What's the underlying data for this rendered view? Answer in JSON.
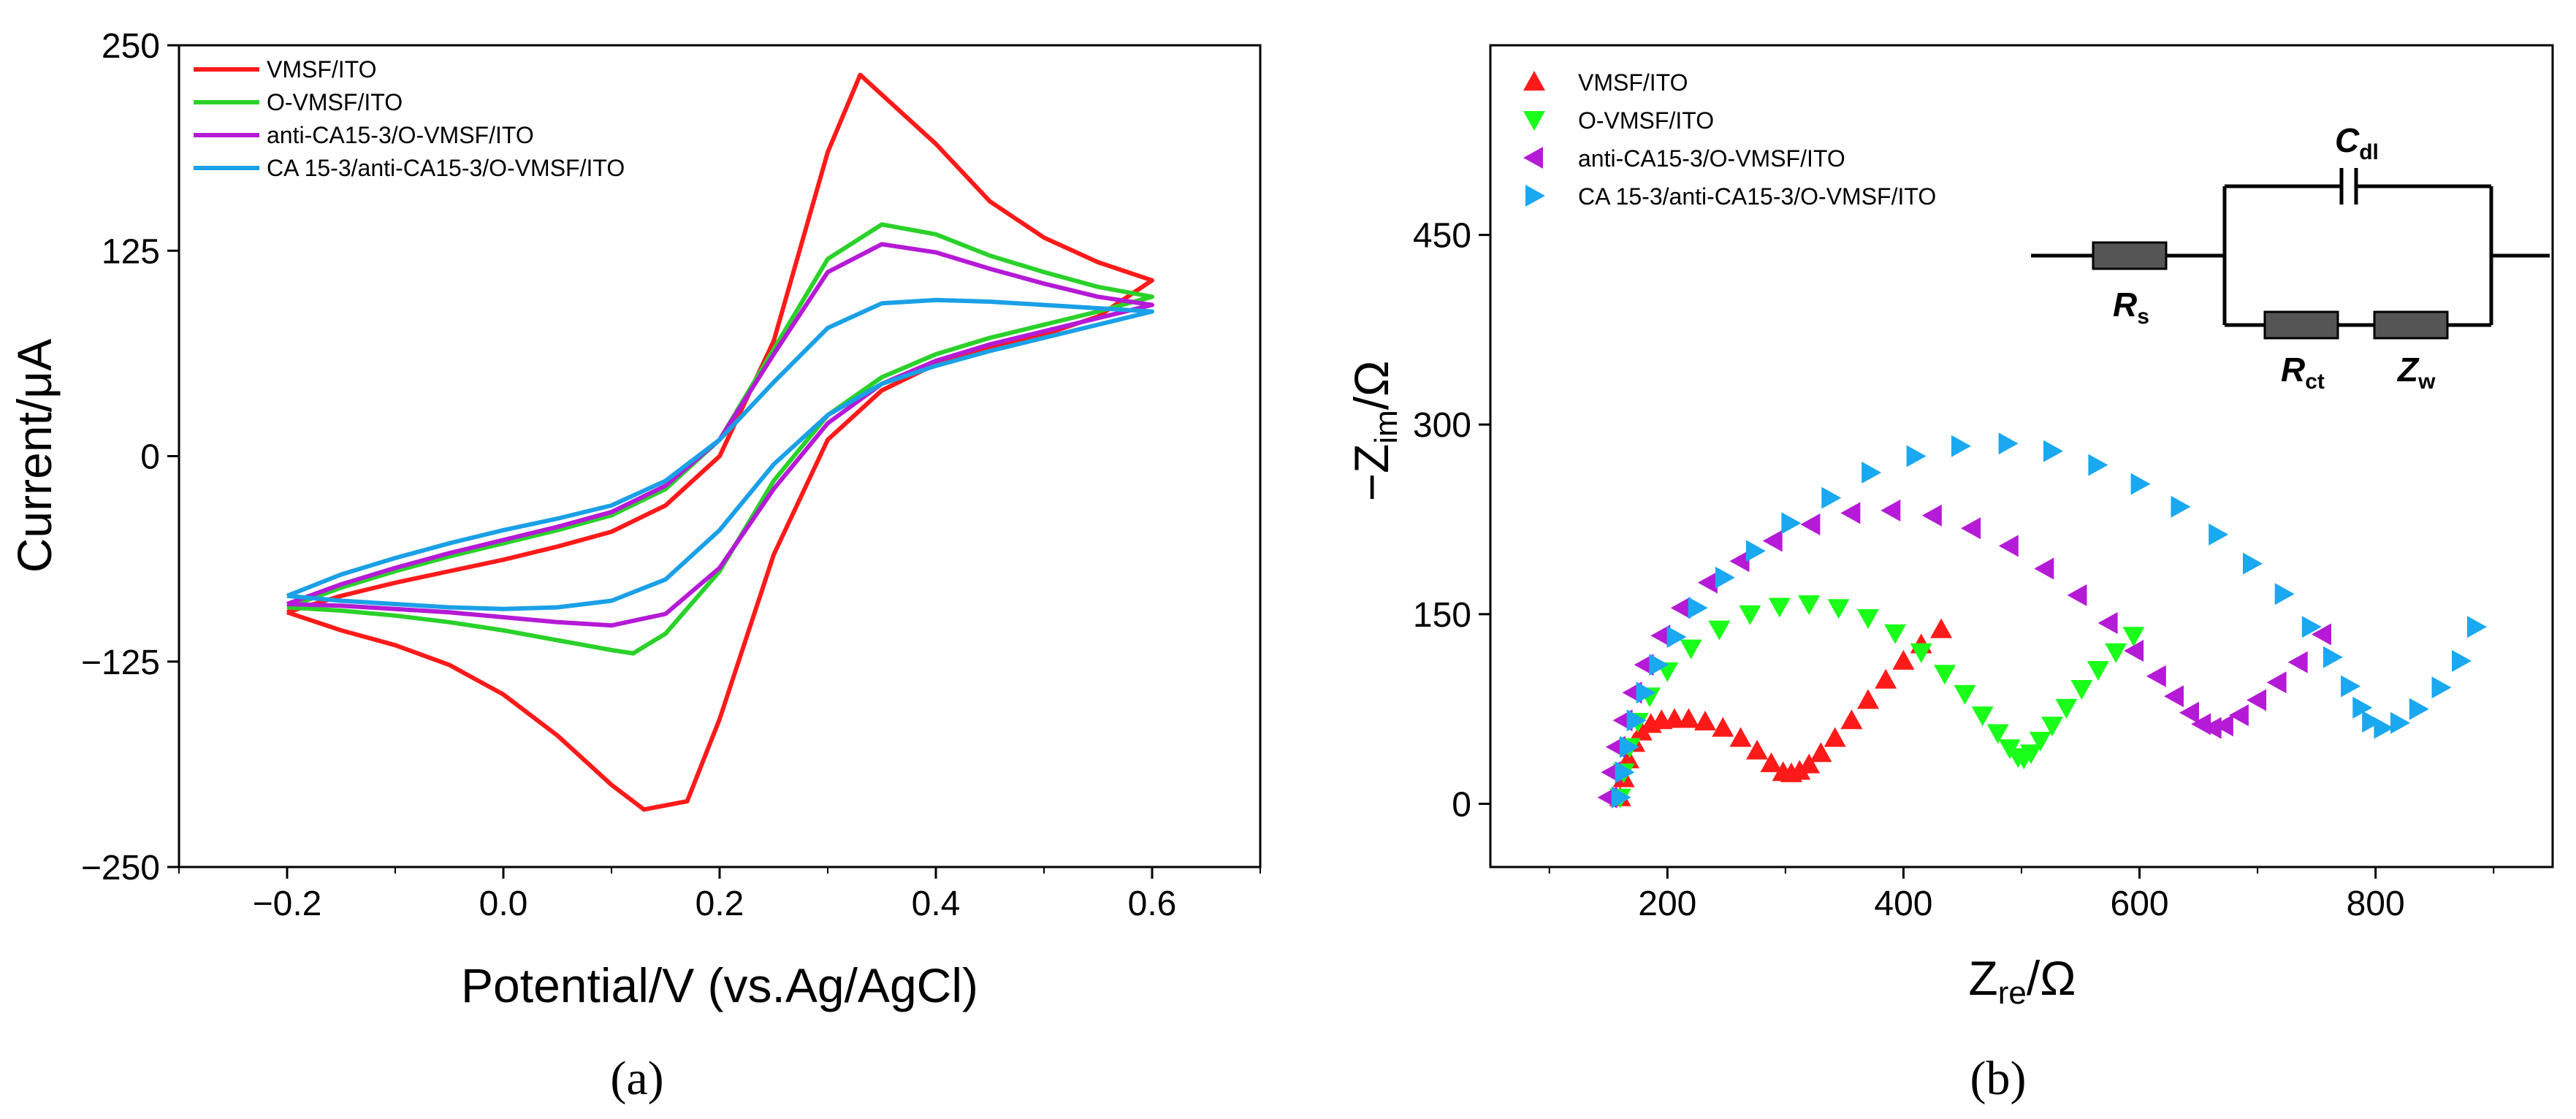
{
  "chart_data": [
    {
      "type": "line",
      "panel_label": "(a)",
      "xlabel": "Potential/V (vs.Ag/AgCl)",
      "ylabel": "Current/μA",
      "xlim": [
        -0.3,
        0.7
      ],
      "ylim": [
        -250,
        250
      ],
      "xticks": [
        -0.2,
        0.0,
        0.2,
        0.4,
        0.6
      ],
      "xtick_labels": [
        "−0.2",
        "0.0",
        "0.2",
        "0.4",
        "0.6"
      ],
      "yticks": [
        -250,
        -125,
        0,
        125,
        250
      ],
      "ytick_labels": [
        "−250",
        "−125",
        "0",
        "125",
        "250"
      ],
      "legend_position": "top-left",
      "series": [
        {
          "name": "VMSF/ITO",
          "color": "#ff1a1a",
          "x": [
            -0.2,
            -0.15,
            -0.1,
            -0.05,
            0.0,
            0.05,
            0.1,
            0.15,
            0.2,
            0.25,
            0.3,
            0.33,
            0.4,
            0.45,
            0.5,
            0.55,
            0.6,
            0.6,
            0.55,
            0.5,
            0.45,
            0.4,
            0.35,
            0.3,
            0.25,
            0.2,
            0.17,
            0.13,
            0.1,
            0.05,
            0.0,
            -0.05,
            -0.1,
            -0.15,
            -0.2
          ],
          "y": [
            -95,
            -85,
            -77,
            -70,
            -63,
            -55,
            -46,
            -30,
            0,
            70,
            185,
            232,
            190,
            155,
            133,
            118,
            107,
            107,
            85,
            74,
            66,
            56,
            40,
            10,
            -60,
            -160,
            -210,
            -215,
            -200,
            -170,
            -145,
            -127,
            -115,
            -106,
            -95
          ]
        },
        {
          "name": "O-VMSF/ITO",
          "color": "#2ad12a",
          "x": [
            -0.2,
            -0.15,
            -0.1,
            -0.05,
            0.0,
            0.05,
            0.1,
            0.15,
            0.2,
            0.25,
            0.3,
            0.35,
            0.4,
            0.45,
            0.5,
            0.55,
            0.6,
            0.6,
            0.55,
            0.5,
            0.45,
            0.4,
            0.35,
            0.3,
            0.25,
            0.2,
            0.15,
            0.12,
            0.1,
            0.05,
            0.0,
            -0.05,
            -0.1,
            -0.15,
            -0.2
          ],
          "y": [
            -92,
            -80,
            -70,
            -61,
            -53,
            -45,
            -36,
            -20,
            10,
            65,
            120,
            141,
            135,
            122,
            112,
            103,
            97,
            97,
            88,
            80,
            72,
            62,
            48,
            25,
            -15,
            -70,
            -108,
            -120,
            -118,
            -112,
            -106,
            -101,
            -97,
            -94,
            -92
          ]
        },
        {
          "name": "anti-CA15-3/O-VMSF/ITO",
          "color": "#b51ad6",
          "x": [
            -0.2,
            -0.15,
            -0.1,
            -0.05,
            0.0,
            0.05,
            0.1,
            0.15,
            0.2,
            0.25,
            0.3,
            0.35,
            0.4,
            0.45,
            0.5,
            0.55,
            0.6,
            0.6,
            0.55,
            0.5,
            0.45,
            0.4,
            0.35,
            0.3,
            0.25,
            0.2,
            0.15,
            0.1,
            0.05,
            0.0,
            -0.05,
            -0.1,
            -0.15,
            -0.2
          ],
          "y": [
            -90,
            -78,
            -68,
            -59,
            -51,
            -43,
            -34,
            -18,
            10,
            62,
            112,
            129,
            124,
            114,
            105,
            97,
            92,
            92,
            84,
            76,
            68,
            58,
            44,
            20,
            -20,
            -68,
            -96,
            -103,
            -101,
            -98,
            -95,
            -93,
            -91,
            -90
          ]
        },
        {
          "name": "CA 15-3/anti-CA15-3/O-VMSF/ITO",
          "color": "#1aa0e6",
          "x": [
            -0.2,
            -0.15,
            -0.1,
            -0.05,
            0.0,
            0.05,
            0.1,
            0.15,
            0.2,
            0.25,
            0.3,
            0.35,
            0.4,
            0.45,
            0.5,
            0.55,
            0.6,
            0.6,
            0.55,
            0.5,
            0.45,
            0.4,
            0.35,
            0.3,
            0.25,
            0.2,
            0.15,
            0.1,
            0.05,
            0.0,
            -0.05,
            -0.1,
            -0.15,
            -0.2
          ],
          "y": [
            -85,
            -72,
            -62,
            -53,
            -45,
            -38,
            -30,
            -15,
            10,
            45,
            78,
            93,
            95,
            94,
            92,
            90,
            88,
            88,
            80,
            72,
            64,
            55,
            44,
            25,
            -5,
            -45,
            -75,
            -88,
            -92,
            -93,
            -92,
            -90,
            -88,
            -85
          ]
        }
      ]
    },
    {
      "type": "scatter",
      "panel_label": "(b)",
      "xlabel": "Z",
      "xlabel_sub": "re",
      "xlabel_unit": "/Ω",
      "ylabel_prefix": "−Z",
      "ylabel_sub": "im",
      "ylabel_unit": "/Ω",
      "xlim": [
        50,
        950
      ],
      "ylim": [
        -50,
        600
      ],
      "xticks": [
        200,
        400,
        600,
        800
      ],
      "xtick_labels": [
        "200",
        "400",
        "600",
        "800"
      ],
      "yticks": [
        0,
        150,
        300,
        450
      ],
      "ytick_labels": [
        "0",
        "150",
        "300",
        "450"
      ],
      "legend_position": "top-left",
      "inset_circuit": {
        "rs_label": "R",
        "rs_sub": "s",
        "cdl_label": "C",
        "cdl_sub": "dl",
        "rct_label": "R",
        "rct_sub": "ct",
        "zw_label": "Z",
        "zw_sub": "w"
      },
      "series": [
        {
          "name": "VMSF/ITO",
          "marker": "triangle-up",
          "color": "#ff1a1a",
          "x": [
            160,
            163,
            167,
            172,
            178,
            186,
            195,
            206,
            218,
            232,
            247,
            262,
            276,
            288,
            298,
            305,
            312,
            320,
            330,
            342,
            356,
            370,
            385,
            400,
            415,
            432
          ],
          "y": [
            5,
            20,
            35,
            48,
            57,
            63,
            66,
            67,
            67,
            65,
            60,
            52,
            42,
            32,
            25,
            24,
            26,
            31,
            40,
            52,
            66,
            82,
            98,
            113,
            126,
            138
          ]
        },
        {
          "name": "O-VMSF/ITO",
          "marker": "triangle-down",
          "color": "#1aff1a",
          "x": [
            160,
            163,
            168,
            175,
            185,
            200,
            220,
            244,
            270,
            295,
            320,
            345,
            370,
            393,
            415,
            435,
            452,
            467,
            480,
            490,
            497,
            502,
            508,
            516,
            526,
            538,
            551,
            565,
            580,
            595
          ],
          "y": [
            5,
            25,
            45,
            65,
            85,
            105,
            123,
            138,
            150,
            156,
            158,
            155,
            147,
            135,
            120,
            103,
            87,
            70,
            56,
            44,
            37,
            36,
            40,
            50,
            62,
            76,
            91,
            106,
            120,
            133
          ]
        },
        {
          "name": "anti-CA15-3/O-VMSF/ITO",
          "marker": "triangle-left",
          "color": "#b51ad6",
          "x": [
            150,
            153,
            157,
            163,
            171,
            181,
            195,
            212,
            235,
            262,
            290,
            322,
            356,
            390,
            425,
            458,
            490,
            520,
            548,
            574,
            596,
            615,
            630,
            643,
            653,
            662,
            672,
            685,
            700,
            717,
            735,
            755
          ],
          "y": [
            5,
            25,
            45,
            66,
            88,
            110,
            133,
            155,
            175,
            192,
            208,
            221,
            230,
            232,
            228,
            218,
            204,
            186,
            165,
            143,
            121,
            101,
            85,
            72,
            63,
            60,
            62,
            70,
            82,
            96,
            112,
            134
          ]
        },
        {
          "name": "CA 15-3/anti-CA15-3/O-VMSF/ITO",
          "marker": "triangle-right",
          "color": "#1aa8f0",
          "x": [
            160,
            163,
            167,
            173,
            181,
            192,
            207,
            225,
            248,
            274,
            304,
            338,
            372,
            410,
            448,
            488,
            526,
            564,
            600,
            634,
            666,
            695,
            722,
            745,
            763,
            778,
            788,
            796,
            806,
            820,
            836,
            855,
            872,
            885
          ],
          "y": [
            5,
            25,
            45,
            66,
            88,
            110,
            132,
            155,
            179,
            200,
            222,
            242,
            262,
            275,
            283,
            285,
            279,
            268,
            253,
            235,
            213,
            190,
            166,
            140,
            116,
            93,
            76,
            65,
            60,
            64,
            75,
            92,
            113,
            140
          ]
        }
      ]
    }
  ]
}
